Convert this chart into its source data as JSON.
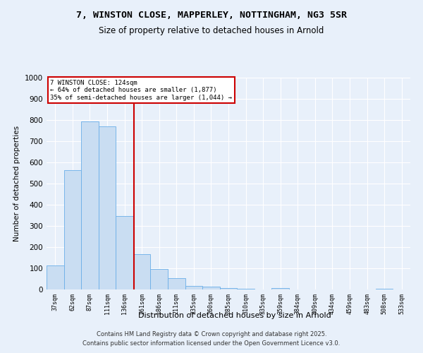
{
  "title1": "7, WINSTON CLOSE, MAPPERLEY, NOTTINGHAM, NG3 5SR",
  "title2": "Size of property relative to detached houses in Arnold",
  "xlabel": "Distribution of detached houses by size in Arnold",
  "ylabel": "Number of detached properties",
  "categories": [
    "37sqm",
    "62sqm",
    "87sqm",
    "111sqm",
    "136sqm",
    "161sqm",
    "186sqm",
    "211sqm",
    "235sqm",
    "260sqm",
    "285sqm",
    "310sqm",
    "335sqm",
    "359sqm",
    "384sqm",
    "409sqm",
    "434sqm",
    "459sqm",
    "483sqm",
    "508sqm",
    "533sqm"
  ],
  "values": [
    113,
    563,
    793,
    770,
    348,
    168,
    98,
    52,
    16,
    12,
    7,
    2,
    0,
    7,
    0,
    0,
    0,
    0,
    0,
    2,
    0
  ],
  "bar_color": "#c9ddf2",
  "bar_edge_color": "#6aaee8",
  "vline_x": 4.55,
  "vline_color": "#cc0000",
  "annotation_line1": "7 WINSTON CLOSE: 124sqm",
  "annotation_line2": "← 64% of detached houses are smaller (1,877)",
  "annotation_line3": "35% of semi-detached houses are larger (1,044) →",
  "annotation_box_color": "#ffffff",
  "annotation_box_edge_color": "#cc0000",
  "ylim": [
    0,
    1000
  ],
  "yticks": [
    0,
    100,
    200,
    300,
    400,
    500,
    600,
    700,
    800,
    900,
    1000
  ],
  "background_color": "#e8f0fa",
  "grid_color": "#ffffff",
  "footer1": "Contains HM Land Registry data © Crown copyright and database right 2025.",
  "footer2": "Contains public sector information licensed under the Open Government Licence v3.0."
}
